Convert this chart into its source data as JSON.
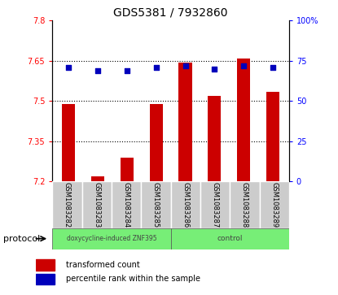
{
  "title": "GDS5381 / 7932860",
  "samples": [
    "GSM1083282",
    "GSM1083283",
    "GSM1083284",
    "GSM1083285",
    "GSM1083286",
    "GSM1083287",
    "GSM1083288",
    "GSM1083289"
  ],
  "bar_values": [
    7.49,
    7.22,
    7.29,
    7.49,
    7.645,
    7.52,
    7.66,
    7.535
  ],
  "percentile_values": [
    71,
    69,
    69,
    71,
    72,
    70,
    72,
    71
  ],
  "bar_bottom": 7.2,
  "ylim_left": [
    7.2,
    7.8
  ],
  "ylim_right": [
    0,
    100
  ],
  "yticks_left": [
    7.2,
    7.35,
    7.5,
    7.65,
    7.8
  ],
  "yticks_right": [
    0,
    25,
    50,
    75,
    100
  ],
  "ytick_labels_left": [
    "7.2",
    "7.35",
    "7.5",
    "7.65",
    "7.8"
  ],
  "ytick_labels_right": [
    "0",
    "25",
    "50",
    "75",
    "100%"
  ],
  "bar_color": "#cc0000",
  "dot_color": "#0000bb",
  "grid_dotted_at": [
    7.35,
    7.5,
    7.65
  ],
  "protocol_groups": [
    {
      "label": "doxycycline-induced ZNF395",
      "start": 0,
      "end": 4,
      "color": "#77ee77"
    },
    {
      "label": "control",
      "start": 4,
      "end": 8,
      "color": "#77ee77"
    }
  ],
  "protocol_label": "protocol",
  "legend_items": [
    {
      "color": "#cc0000",
      "label": "transformed count"
    },
    {
      "color": "#0000bb",
      "label": "percentile rank within the sample"
    }
  ],
  "bg_color": "#ffffff",
  "plot_bg": "#ffffff",
  "tick_area_bg": "#cccccc",
  "bar_width": 0.45,
  "xlim": [
    -0.55,
    7.55
  ]
}
